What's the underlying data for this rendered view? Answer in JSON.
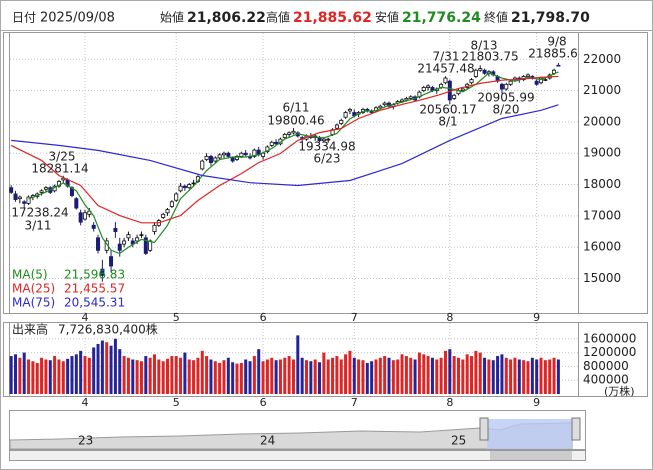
{
  "header": {
    "date_label": "日付",
    "date": "2025/09/08",
    "open_label": "始値",
    "open": "21,806.22",
    "high_label": "高値",
    "high": "21,885.62",
    "low_label": "安値",
    "low": "21,776.24",
    "close_label": "終値",
    "close": "21,798.70"
  },
  "chart_data": {
    "type": "candlestick",
    "categories": [
      null,
      null,
      null,
      null,
      null,
      null,
      null,
      null,
      null,
      null,
      null,
      null,
      null,
      null,
      null,
      null,
      null,
      "4",
      null,
      null,
      null,
      null,
      null,
      null,
      null,
      null,
      null,
      null,
      null,
      null,
      null,
      null,
      null,
      null,
      null,
      null,
      null,
      null,
      "5",
      null,
      null,
      null,
      null,
      null,
      null,
      null,
      null,
      null,
      null,
      null,
      null,
      null,
      null,
      null,
      null,
      null,
      null,
      null,
      "6",
      null,
      null,
      null,
      null,
      null,
      null,
      null,
      null,
      null,
      null,
      null,
      null,
      null,
      null,
      null,
      null,
      null,
      null,
      null,
      null,
      "7",
      null,
      null,
      null,
      null,
      null,
      null,
      null,
      null,
      null,
      null,
      null,
      null,
      null,
      null,
      null,
      null,
      null,
      null,
      null,
      null,
      null,
      "8",
      null,
      null,
      null,
      null,
      null,
      null,
      null,
      null,
      null,
      null,
      null,
      null,
      null,
      null,
      null,
      null,
      null,
      null,
      null,
      "9",
      null,
      null,
      null,
      null,
      null
    ],
    "ohlc": [
      [
        17900,
        17980,
        17700,
        17750
      ],
      [
        17700,
        17800,
        17450,
        17520
      ],
      [
        17550,
        17650,
        17400,
        17600
      ],
      [
        17450,
        17500,
        17238.24,
        17400
      ],
      [
        17400,
        17650,
        17350,
        17600
      ],
      [
        17600,
        17700,
        17500,
        17650
      ],
      [
        17620,
        17750,
        17550,
        17700
      ],
      [
        17750,
        17850,
        17650,
        17800
      ],
      [
        17850,
        17950,
        17750,
        17900
      ],
      [
        17900,
        17950,
        17700,
        17750
      ],
      [
        17800,
        18000,
        17750,
        17950
      ],
      [
        17950,
        18150,
        17900,
        18100
      ],
      [
        18150,
        18281.14,
        18050,
        18200
      ],
      [
        18150,
        18200,
        17900,
        17950
      ],
      [
        17900,
        17950,
        17600,
        17650
      ],
      [
        17550,
        17600,
        17200,
        17250
      ],
      [
        17100,
        17200,
        16700,
        16800
      ],
      [
        16900,
        17200,
        16850,
        17100
      ],
      [
        17050,
        17250,
        16950,
        17150
      ],
      [
        16700,
        16800,
        16500,
        16600
      ],
      [
        16300,
        16400,
        15800,
        15900
      ],
      [
        15300,
        15600,
        14900,
        15100
      ],
      [
        15900,
        16300,
        15800,
        16200
      ],
      [
        15700,
        15900,
        15200,
        15400
      ],
      [
        16600,
        16800,
        16300,
        16500
      ],
      [
        16100,
        16300,
        15700,
        15900
      ],
      [
        16100,
        16300,
        16000,
        16200
      ],
      [
        16300,
        16500,
        16200,
        16400
      ],
      [
        16200,
        16300,
        16000,
        16100
      ],
      [
        16200,
        16400,
        16100,
        16300
      ],
      [
        16400,
        16500,
        16300,
        16400
      ],
      [
        16300,
        16400,
        15750,
        15800
      ],
      [
        15900,
        16250,
        15850,
        16200
      ],
      [
        16500,
        16800,
        16400,
        16700
      ],
      [
        16700,
        16900,
        16650,
        16850
      ],
      [
        16950,
        17100,
        16900,
        17050
      ],
      [
        17100,
        17250,
        17000,
        17200
      ],
      [
        17300,
        17500,
        17250,
        17450
      ],
      [
        17500,
        17750,
        17450,
        17700
      ],
      [
        17800,
        18050,
        17750,
        17950
      ],
      [
        17950,
        18000,
        17800,
        17900
      ],
      [
        17900,
        18050,
        17850,
        18000
      ],
      [
        18050,
        18150,
        17950,
        18050
      ],
      [
        18100,
        18300,
        18050,
        18250
      ],
      [
        18500,
        18800,
        18450,
        18750
      ],
      [
        18800,
        19000,
        18750,
        18900
      ],
      [
        18900,
        18950,
        18600,
        18700
      ],
      [
        18750,
        18900,
        18700,
        18850
      ],
      [
        18850,
        19000,
        18800,
        18950
      ],
      [
        18950,
        19050,
        18850,
        19000
      ],
      [
        19000,
        19050,
        18850,
        18900
      ],
      [
        18850,
        18900,
        18700,
        18750
      ],
      [
        18800,
        18950,
        18750,
        18900
      ],
      [
        18900,
        19050,
        18850,
        19000
      ],
      [
        19000,
        19100,
        18900,
        18950
      ],
      [
        18900,
        19000,
        18800,
        18850
      ],
      [
        18900,
        19150,
        18850,
        19100
      ],
      [
        19100,
        19200,
        18900,
        18950
      ],
      [
        18900,
        19050,
        18800,
        19000
      ],
      [
        19050,
        19250,
        19000,
        19200
      ],
      [
        19250,
        19400,
        19200,
        19350
      ],
      [
        19350,
        19450,
        19250,
        19300
      ],
      [
        19300,
        19500,
        19250,
        19450
      ],
      [
        19500,
        19650,
        19450,
        19600
      ],
      [
        19600,
        19700,
        19500,
        19650
      ],
      [
        19650,
        19800.46,
        19600,
        19700
      ],
      [
        19650,
        19700,
        19500,
        19550
      ],
      [
        19500,
        19550,
        19350,
        19450
      ],
      [
        19450,
        19600,
        19400,
        19550
      ],
      [
        19550,
        19650,
        19450,
        19500
      ],
      [
        19500,
        19600,
        19400,
        19550
      ],
      [
        19500,
        19550,
        19350,
        19400
      ],
      [
        19400,
        19500,
        19350,
        19450
      ],
      [
        19420,
        19500,
        19334.98,
        19450
      ],
      [
        19600,
        19800,
        19550,
        19750
      ],
      [
        19800,
        19950,
        19750,
        19900
      ],
      [
        19950,
        20100,
        19900,
        20050
      ],
      [
        20150,
        20350,
        20100,
        20300
      ],
      [
        20350,
        20450,
        20250,
        20400
      ],
      [
        20300,
        20400,
        20150,
        20200
      ],
      [
        20250,
        20350,
        20150,
        20300
      ],
      [
        20300,
        20450,
        20250,
        20400
      ],
      [
        20400,
        20450,
        20300,
        20350
      ],
      [
        20350,
        20400,
        20250,
        20300
      ],
      [
        20350,
        20500,
        20300,
        20450
      ],
      [
        20450,
        20550,
        20400,
        20500
      ],
      [
        20550,
        20650,
        20500,
        20600
      ],
      [
        20600,
        20650,
        20450,
        20500
      ],
      [
        20500,
        20600,
        20400,
        20550
      ],
      [
        20600,
        20700,
        20550,
        20650
      ],
      [
        20650,
        20750,
        20600,
        20700
      ],
      [
        20700,
        20800,
        20650,
        20750
      ],
      [
        20750,
        20850,
        20700,
        20800
      ],
      [
        20800,
        20850,
        20650,
        20700
      ],
      [
        20800,
        21000,
        20750,
        20950
      ],
      [
        21000,
        21150,
        20950,
        21100
      ],
      [
        21100,
        21200,
        21000,
        21150
      ],
      [
        21100,
        21150,
        20950,
        21000
      ],
      [
        21000,
        21100,
        20900,
        21050
      ],
      [
        21100,
        21250,
        21050,
        21200
      ],
      [
        21250,
        21457.48,
        21200,
        21400
      ],
      [
        21300,
        21350,
        20560.17,
        20700
      ],
      [
        20750,
        20900,
        20700,
        20850
      ],
      [
        20900,
        21050,
        20850,
        21000
      ],
      [
        21000,
        21100,
        20950,
        21050
      ],
      [
        21100,
        21250,
        21050,
        21200
      ],
      [
        21250,
        21400,
        21200,
        21350
      ],
      [
        21450,
        21700,
        21400,
        21650
      ],
      [
        21650,
        21803.75,
        21600,
        21700
      ],
      [
        21650,
        21700,
        21500,
        21550
      ],
      [
        21550,
        21650,
        21450,
        21600
      ],
      [
        21600,
        21650,
        21450,
        21500
      ],
      [
        21450,
        21500,
        21250,
        21300
      ],
      [
        21200,
        21250,
        20905.99,
        21050
      ],
      [
        21050,
        21250,
        21000,
        21200
      ],
      [
        21200,
        21350,
        21150,
        21300
      ],
      [
        21350,
        21450,
        21300,
        21400
      ],
      [
        21400,
        21450,
        21250,
        21350
      ],
      [
        21350,
        21500,
        21300,
        21450
      ],
      [
        21450,
        21550,
        21400,
        21500
      ],
      [
        21450,
        21500,
        21350,
        21400
      ],
      [
        21300,
        21350,
        21150,
        21200
      ],
      [
        21250,
        21450,
        21200,
        21400
      ],
      [
        21350,
        21450,
        21300,
        21350
      ],
      [
        21400,
        21550,
        21350,
        21500
      ],
      [
        21550,
        21700,
        21500,
        21650
      ],
      [
        21806.22,
        21885.62,
        21776.24,
        21798.7
      ]
    ],
    "up_color": "#ffffff",
    "down_color": "#1c1c78",
    "ylim": [
      13900,
      22870
    ],
    "yticks": [
      15000,
      16000,
      17000,
      18000,
      19000,
      20000,
      21000,
      22000
    ],
    "grid": true,
    "series": [
      {
        "name": "MA(5)",
        "label": "21,596.83",
        "color": "#1e8c1e",
        "x": [
          4,
          8,
          12,
          15,
          17,
          19,
          21,
          23,
          25,
          27,
          30,
          33,
          36,
          39,
          42,
          45,
          48,
          51,
          54,
          57,
          60,
          63,
          66,
          69,
          72,
          75,
          78,
          81,
          84,
          87,
          90,
          93,
          96,
          99,
          101,
          104,
          107,
          110,
          113,
          116,
          119,
          122,
          126
        ],
        "values": [
          17540,
          17760,
          18050,
          17800,
          17350,
          17000,
          16300,
          15900,
          15800,
          16000,
          16250,
          16150,
          16700,
          17550,
          17950,
          18450,
          18800,
          18880,
          18880,
          18950,
          19150,
          19450,
          19620,
          19530,
          19490,
          19630,
          20100,
          20340,
          20360,
          20530,
          20630,
          20750,
          20930,
          21100,
          21070,
          20960,
          21200,
          21560,
          21400,
          21300,
          21420,
          21350,
          21596.83
        ]
      },
      {
        "name": "MA(25)",
        "label": "21,455.57",
        "color": "#e02424",
        "x": [
          0,
          7,
          11,
          16,
          20,
          25,
          30,
          34,
          39,
          43,
          48,
          53,
          57,
          62,
          66,
          71,
          76,
          80,
          85,
          90,
          94,
          99,
          103,
          108,
          113,
          117,
          122,
          126
        ],
        "values": [
          19250,
          18770,
          18290,
          17970,
          17330,
          17010,
          16780,
          16780,
          17010,
          17490,
          17970,
          18350,
          18700,
          18990,
          19410,
          19660,
          19790,
          20110,
          20370,
          20560,
          20690,
          20880,
          21070,
          21230,
          21330,
          21360,
          21420,
          21455.57
        ]
      },
      {
        "name": "MA(75)",
        "label": "20,545.31",
        "color": "#2a2ad2",
        "x": [
          0,
          11,
          20,
          32,
          44,
          55,
          66,
          78,
          90,
          101,
          113,
          122,
          126
        ],
        "values": [
          19410,
          19250,
          19090,
          18770,
          18290,
          18060,
          17970,
          18130,
          18670,
          19410,
          20110,
          20370,
          20545.31
        ]
      }
    ],
    "annotations": [
      {
        "date": "3/25",
        "price": "18281.14"
      },
      {
        "date": "3/11",
        "price": "17238.24"
      },
      {
        "date": "6/11",
        "price": "19800.46"
      },
      {
        "date": "6/23",
        "price": "19334.98"
      },
      {
        "date": "7/31",
        "price": "21457.48"
      },
      {
        "date": "8/13",
        "price": "21803.75"
      },
      {
        "date": "8/1",
        "price": "20560.17"
      },
      {
        "date": "8/20",
        "price": "20905.99"
      },
      {
        "date": "9/8",
        "price": "21885.6"
      }
    ],
    "volume": {
      "title": "出来高",
      "total": "7,726,830,400株",
      "unit": "(万株)",
      "up_color": "#e02424",
      "down_color": "#24249a",
      "ylim": [
        0,
        2000000
      ],
      "yticks": [
        400000,
        800000,
        1200000,
        1600000
      ],
      "values": [
        1100000,
        1150000,
        1050000,
        1200000,
        1000000,
        950000,
        900000,
        1050000,
        1000000,
        980000,
        1100000,
        1000000,
        950000,
        1020000,
        1100000,
        1150000,
        1250000,
        1100000,
        1050000,
        1350000,
        1450000,
        1550000,
        1500000,
        1400000,
        1600000,
        1300000,
        1100000,
        1050000,
        1000000,
        980000,
        950000,
        1100000,
        1050000,
        1150000,
        1000000,
        950000,
        1020000,
        1100000,
        1100000,
        1050000,
        1200000,
        1000000,
        980000,
        1050000,
        1250000,
        1100000,
        1000000,
        950000,
        900000,
        980000,
        1050000,
        920000,
        880000,
        900000,
        1000000,
        950000,
        1100000,
        1300000,
        950000,
        1000000,
        1050000,
        980000,
        1000000,
        1050000,
        1100000,
        1000000,
        1700000,
        1050000,
        980000,
        950000,
        1000000,
        920000,
        1200000,
        1000000,
        1050000,
        1100000,
        1000000,
        1150000,
        1250000,
        1050000,
        1000000,
        980000,
        900000,
        950000,
        1000000,
        1050000,
        1100000,
        1050000,
        980000,
        1000000,
        1150000,
        1100000,
        1050000,
        1000000,
        1200000,
        1150000,
        1100000,
        1050000,
        1000000,
        1050000,
        1250000,
        1300000,
        1100000,
        1050000,
        1000000,
        1150000,
        1100000,
        1250000,
        1200000,
        1050000,
        1000000,
        980000,
        1100000,
        1150000,
        1050000,
        1000000,
        1050000,
        1000000,
        980000,
        950000,
        1050000,
        1000000,
        1050000,
        980000,
        1000000,
        1050000,
        1000000
      ]
    }
  },
  "navigator": {
    "labels": [
      "23",
      "24",
      "25"
    ]
  }
}
